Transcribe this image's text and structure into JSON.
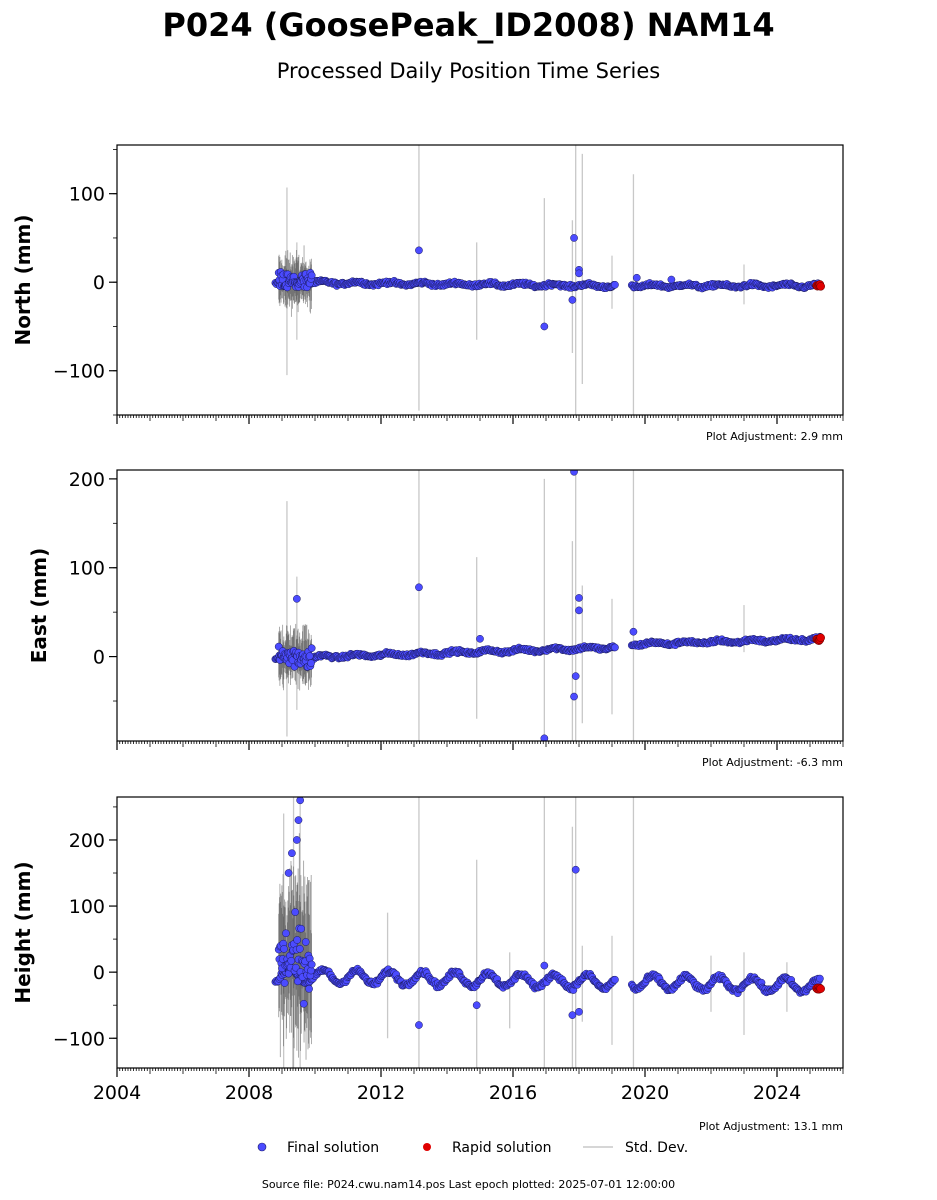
{
  "figure": {
    "title": "P024 (GoosePeak_ID2008) NAM14",
    "subtitle": "Processed Daily Position Time Series",
    "source": "Source file: P024.cwu.nam14.pos  Last epoch plotted: 2025-07-01 12:00:00",
    "legend": {
      "final": "Final solution",
      "rapid": "Rapid solution",
      "std": "Std. Dev.",
      "placement": "bottom-center"
    },
    "colors": {
      "final": "#4b4bff",
      "rapid": "#e00000",
      "std": "#c8c8c8",
      "cloud": "#555555"
    }
  },
  "chart_data": [
    {
      "type": "scatter",
      "ylabel": "North (mm)",
      "adjustment": "Plot Adjustment: 2.9 mm",
      "xlim": [
        2004.0,
        2026.0
      ],
      "ylim": [
        -150,
        155
      ],
      "yticks": [
        -100,
        0,
        100
      ],
      "ytick_labels": [
        "−100",
        "0",
        "100"
      ],
      "xticks": [
        2004,
        2008,
        2012,
        2016,
        2020,
        2024
      ],
      "xtick_labels": [
        "2004",
        "2008",
        "2012",
        "2016",
        "2020",
        "2024"
      ],
      "show_xtick_labels": false,
      "grid": false,
      "segments": [
        {
          "start": 2008.8,
          "end": 2019.1,
          "start_val": 0,
          "slope": -0.4,
          "amp": 1.5,
          "noise": 2.5
        },
        {
          "start": 2019.6,
          "end": 2025.3,
          "start_val": -4,
          "slope": 0.0,
          "amp": 1.5,
          "noise": 2.5
        }
      ],
      "burst": {
        "start": 2008.9,
        "end": 2009.9,
        "spread": 14,
        "center": 0
      },
      "outliers": [
        [
          2013.15,
          36
        ],
        [
          2016.95,
          -50
        ],
        [
          2017.85,
          50
        ],
        [
          2017.8,
          -20
        ],
        [
          2018.0,
          14
        ],
        [
          2018.0,
          10
        ],
        [
          2019.75,
          5
        ],
        [
          2020.8,
          3
        ]
      ],
      "std_lines": [
        [
          2009.15,
          -105,
          107
        ],
        [
          2009.45,
          -65,
          45
        ],
        [
          2013.15,
          -145,
          155
        ],
        [
          2014.9,
          -65,
          45
        ],
        [
          2016.95,
          -50,
          95
        ],
        [
          2017.8,
          -80,
          70
        ],
        [
          2017.9,
          -150,
          155
        ],
        [
          2018.1,
          -115,
          145
        ],
        [
          2019.0,
          -30,
          30
        ],
        [
          2019.65,
          -150,
          122
        ],
        [
          2023.0,
          -25,
          20
        ]
      ],
      "rapid": {
        "start": 2025.2,
        "end": 2025.33,
        "value": -4
      }
    },
    {
      "type": "scatter",
      "ylabel": "East (mm)",
      "adjustment": "Plot Adjustment: -6.3 mm",
      "xlim": [
        2004.0,
        2026.0
      ],
      "ylim": [
        -95,
        210
      ],
      "yticks": [
        0,
        100,
        200
      ],
      "ytick_labels": [
        "0",
        "100",
        "200"
      ],
      "xticks": [
        2004,
        2008,
        2012,
        2016,
        2020,
        2024
      ],
      "xtick_labels": [
        "2004",
        "2008",
        "2012",
        "2016",
        "2020",
        "2024"
      ],
      "show_xtick_labels": false,
      "grid": false,
      "segments": [
        {
          "start": 2008.8,
          "end": 2019.1,
          "start_val": -2,
          "slope": 1.2,
          "amp": 1.5,
          "noise": 2.5
        },
        {
          "start": 2019.6,
          "end": 2025.3,
          "start_val": 14,
          "slope": 1.0,
          "amp": 1.5,
          "noise": 2.5
        }
      ],
      "burst": {
        "start": 2008.9,
        "end": 2009.9,
        "spread": 16,
        "center": 0
      },
      "outliers": [
        [
          2009.45,
          65
        ],
        [
          2013.15,
          78
        ],
        [
          2016.95,
          -92
        ],
        [
          2017.85,
          208
        ],
        [
          2018.0,
          66
        ],
        [
          2018.0,
          52
        ],
        [
          2017.85,
          -45
        ],
        [
          2017.9,
          -22
        ],
        [
          2019.65,
          28
        ],
        [
          2015.0,
          20
        ]
      ],
      "std_lines": [
        [
          2009.15,
          -90,
          175
        ],
        [
          2009.45,
          -60,
          90
        ],
        [
          2013.15,
          -95,
          210
        ],
        [
          2014.9,
          -70,
          112
        ],
        [
          2016.95,
          -95,
          200
        ],
        [
          2017.8,
          -95,
          130
        ],
        [
          2017.9,
          -95,
          210
        ],
        [
          2018.1,
          -75,
          80
        ],
        [
          2019.0,
          -65,
          65
        ],
        [
          2019.65,
          -95,
          210
        ],
        [
          2023.0,
          5,
          58
        ]
      ],
      "rapid": {
        "start": 2025.2,
        "end": 2025.33,
        "value": 20
      }
    },
    {
      "type": "scatter",
      "ylabel": "Height (mm)",
      "adjustment": "Plot Adjustment: 13.1 mm",
      "xlim": [
        2004.0,
        2026.0
      ],
      "ylim": [
        -145,
        265
      ],
      "yticks": [
        -100,
        0,
        100,
        200
      ],
      "ytick_labels": [
        "−100",
        "0",
        "100",
        "200"
      ],
      "xticks": [
        2004,
        2008,
        2012,
        2016,
        2020,
        2024
      ],
      "xtick_labels": [
        "2004",
        "2008",
        "2012",
        "2016",
        "2020",
        "2024"
      ],
      "show_xtick_labels": true,
      "grid": false,
      "segments": [
        {
          "start": 2008.8,
          "end": 2019.1,
          "start_val": -5,
          "slope": -1.0,
          "amp": 10,
          "noise": 5
        },
        {
          "start": 2019.6,
          "end": 2025.3,
          "start_val": -15,
          "slope": -1.0,
          "amp": 10,
          "noise": 5
        }
      ],
      "burst": {
        "start": 2008.9,
        "end": 2009.9,
        "spread": 60,
        "center": 20
      },
      "outliers": [
        [
          2009.55,
          260
        ],
        [
          2009.5,
          230
        ],
        [
          2009.45,
          200
        ],
        [
          2009.3,
          180
        ],
        [
          2009.2,
          150
        ],
        [
          2013.15,
          -80
        ],
        [
          2014.9,
          -50
        ],
        [
          2017.9,
          155
        ],
        [
          2017.8,
          -65
        ],
        [
          2018.0,
          -60
        ],
        [
          2016.95,
          10
        ]
      ],
      "std_lines": [
        [
          2009.05,
          -145,
          240
        ],
        [
          2009.35,
          -145,
          265
        ],
        [
          2009.55,
          -145,
          265
        ],
        [
          2012.2,
          -100,
          90
        ],
        [
          2013.15,
          -145,
          265
        ],
        [
          2014.9,
          -145,
          170
        ],
        [
          2015.9,
          -85,
          30
        ],
        [
          2016.95,
          -145,
          265
        ],
        [
          2017.8,
          -145,
          220
        ],
        [
          2017.9,
          -145,
          265
        ],
        [
          2018.1,
          -75,
          40
        ],
        [
          2019.0,
          -110,
          55
        ],
        [
          2019.65,
          -145,
          265
        ],
        [
          2022.0,
          -60,
          25
        ],
        [
          2023.0,
          -95,
          30
        ],
        [
          2024.3,
          -60,
          15
        ]
      ],
      "rapid": {
        "start": 2025.2,
        "end": 2025.33,
        "value": -25
      }
    }
  ]
}
